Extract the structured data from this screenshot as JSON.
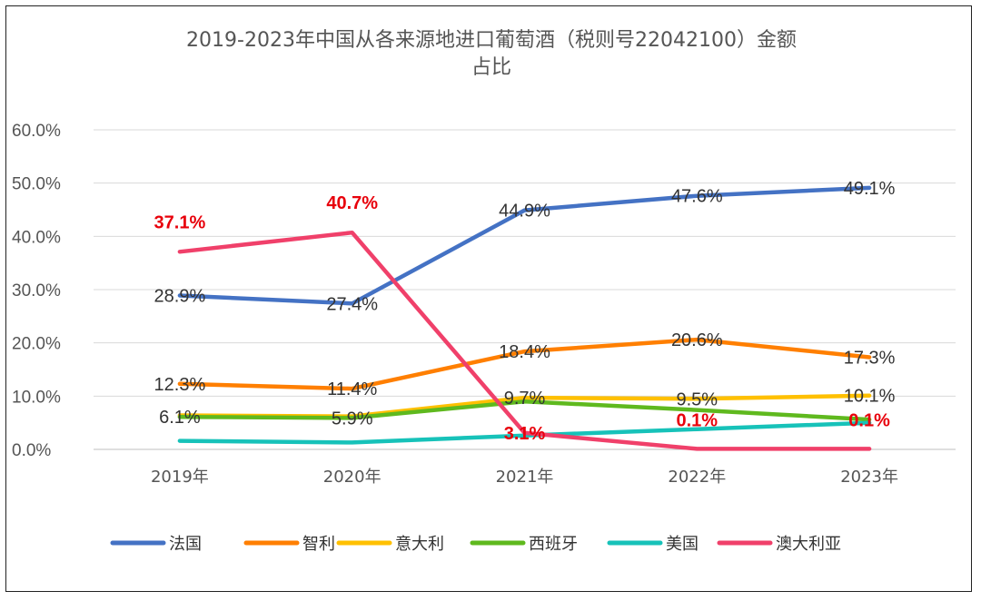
{
  "chart_data": {
    "type": "line",
    "title_line1": "2019-2023年中国从各来源地进口葡萄酒（税则号22042100）金额",
    "title_line2": "占比",
    "categories": [
      "2019年",
      "2020年",
      "2021年",
      "2022年",
      "2023年"
    ],
    "ylim": [
      0,
      60
    ],
    "yticks": [
      "0.0%",
      "10.0%",
      "20.0%",
      "30.0%",
      "40.0%",
      "50.0%",
      "60.0%"
    ],
    "grid": true,
    "legend_position": "bottom",
    "series": [
      {
        "name": "法国",
        "color": "#4472c4",
        "values": [
          28.9,
          27.4,
          44.9,
          47.6,
          49.1
        ],
        "labels": [
          "28.9%",
          "27.4%",
          "44.9%",
          "47.6%",
          "49.1%"
        ],
        "label_red": [
          false,
          false,
          false,
          false,
          false
        ]
      },
      {
        "name": "智利",
        "color": "#ff7f00",
        "values": [
          12.3,
          11.4,
          18.4,
          20.6,
          17.3
        ],
        "labels": [
          "12.3%",
          "11.4%",
          "18.4%",
          "20.6%",
          "17.3%"
        ],
        "label_red": [
          false,
          false,
          false,
          false,
          false
        ]
      },
      {
        "name": "意大利",
        "color": "#ffc000",
        "values": [
          6.4,
          6.2,
          9.7,
          9.5,
          10.1
        ],
        "labels": [
          "",
          "",
          "9.7%",
          "9.5%",
          "10.1%"
        ],
        "label_red": [
          false,
          false,
          false,
          false,
          false
        ]
      },
      {
        "name": "西班牙",
        "color": "#5fb91e",
        "values": [
          6.1,
          5.9,
          9.0,
          7.4,
          5.6
        ],
        "labels": [
          "6.1%",
          "5.9%",
          "",
          "",
          ""
        ],
        "label_red": [
          false,
          false,
          false,
          false,
          false
        ]
      },
      {
        "name": "美国",
        "color": "#17c2b9",
        "values": [
          1.6,
          1.3,
          2.6,
          3.8,
          5.0
        ],
        "labels": [
          "",
          "",
          "",
          "",
          ""
        ],
        "label_red": [
          false,
          false,
          false,
          false,
          false
        ]
      },
      {
        "name": "澳大利亚",
        "color": "#f0406a",
        "values": [
          37.1,
          40.7,
          3.1,
          0.1,
          0.1
        ],
        "labels": [
          "37.1%",
          "40.7%",
          "3.1%",
          "0.1%",
          "0.1%"
        ],
        "label_red": [
          true,
          true,
          true,
          true,
          true
        ]
      }
    ]
  }
}
